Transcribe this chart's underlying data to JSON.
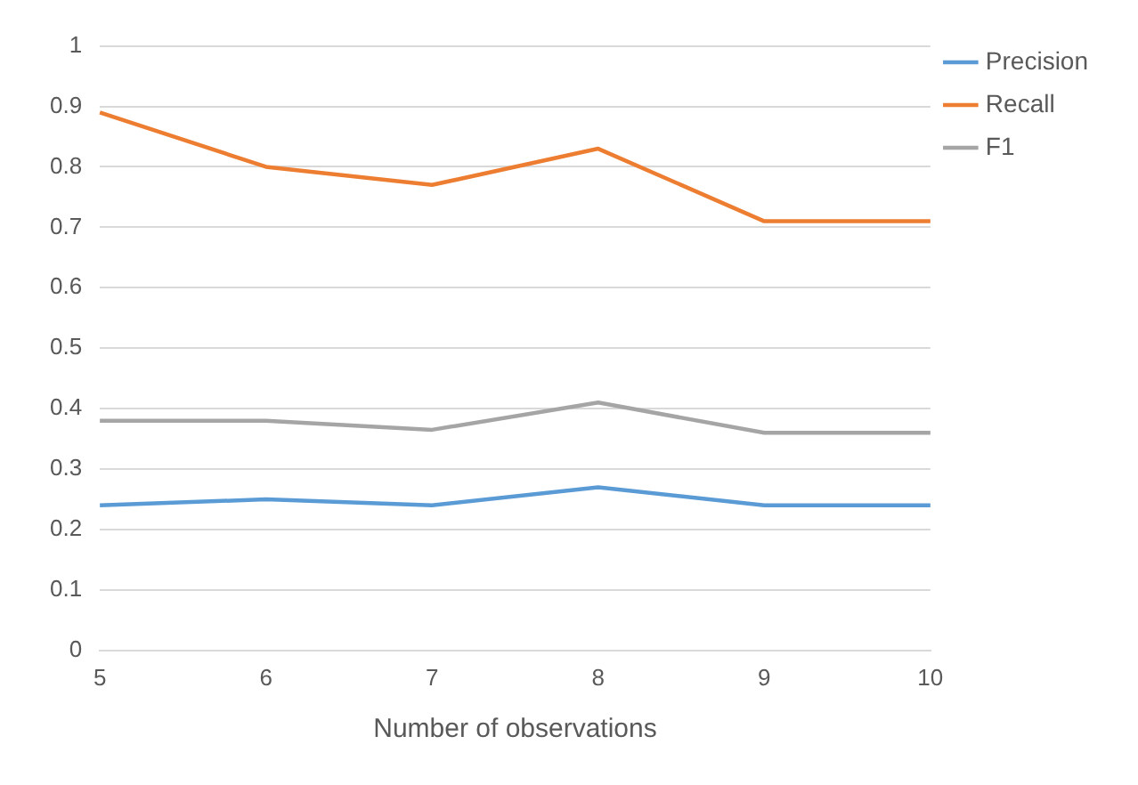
{
  "chart_data": {
    "type": "line",
    "xlabel": "Number of observations",
    "categories": [
      "5",
      "6",
      "7",
      "8",
      "9",
      "10"
    ],
    "series": [
      {
        "name": "Precision",
        "color": "#5b9bd5",
        "values": [
          0.24,
          0.25,
          0.24,
          0.27,
          0.24,
          0.24
        ]
      },
      {
        "name": "Recall",
        "color": "#ed7d31",
        "values": [
          0.89,
          0.8,
          0.77,
          0.83,
          0.71,
          0.71
        ]
      },
      {
        "name": "F1",
        "color": "#a5a5a5",
        "values": [
          0.38,
          0.38,
          0.365,
          0.41,
          0.36,
          0.36
        ]
      }
    ],
    "ylim": [
      0,
      1
    ],
    "yticks": [
      0,
      0.1,
      0.2,
      0.3,
      0.4,
      0.5,
      0.6,
      0.7,
      0.8,
      0.9,
      1
    ],
    "grid": "y",
    "legend": "top right",
    "marker": "none",
    "line_style": "solid"
  }
}
